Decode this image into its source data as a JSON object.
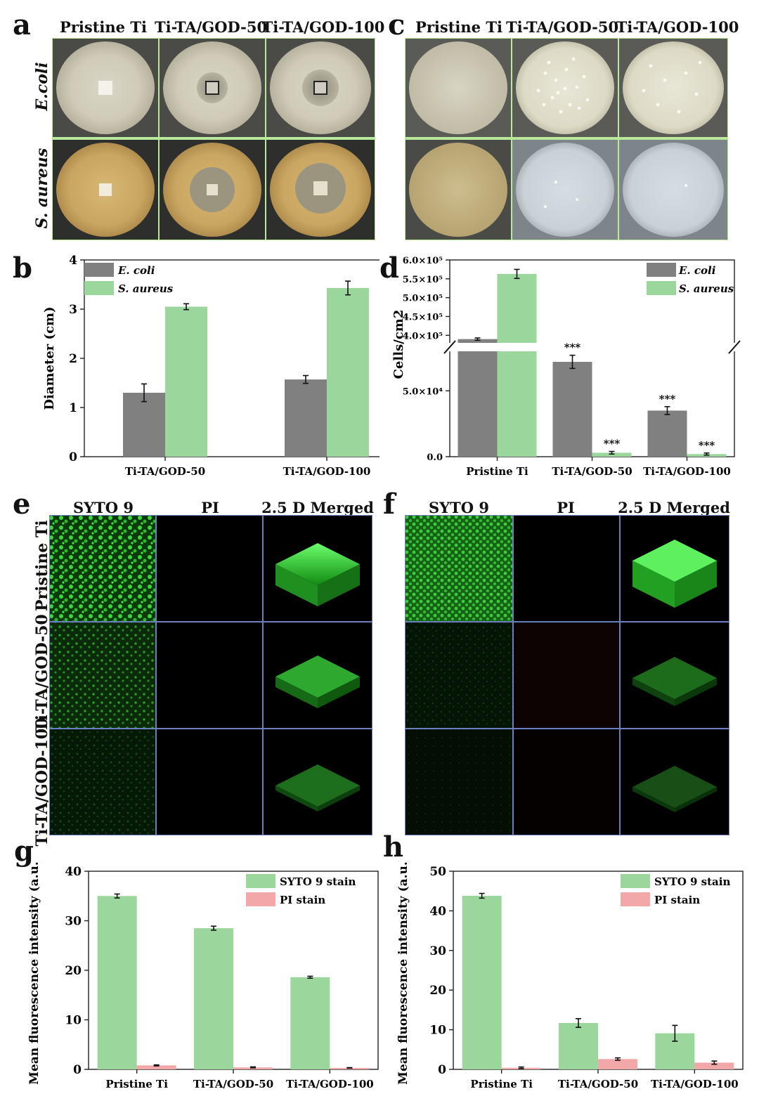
{
  "panel_labels": {
    "a": "a",
    "b": "b",
    "c": "c",
    "d": "d",
    "e": "e",
    "f": "f",
    "g": "g",
    "h": "h"
  },
  "plates": {
    "columns": [
      "Pristine Ti",
      "Ti-TA/GOD-50",
      "Ti-TA/GOD-100"
    ],
    "rows_a": [
      "E.coli",
      "S. aureus"
    ]
  },
  "confocal": {
    "columns": [
      "SYTO 9",
      "PI",
      "2.5 D Merged"
    ],
    "rows": [
      "Pristine Ti",
      "Ti-TA/GOD-50",
      "Ti-TA/GOD-100"
    ]
  },
  "colors": {
    "gray": "#808080",
    "green": "#9bd79d",
    "red": "#f2a8a8",
    "plate_border": "#b9e89a",
    "cf_border": "#6b7fbf"
  },
  "chart_data": [
    {
      "id": "b",
      "type": "bar",
      "categories": [
        "Ti-TA/GOD-50",
        "Ti-TA/GOD-100"
      ],
      "series": [
        {
          "name": "E. coli",
          "values": [
            1.3,
            1.57
          ],
          "errors": [
            0.18,
            0.08
          ]
        },
        {
          "name": "S. aureus",
          "values": [
            3.05,
            3.43
          ],
          "errors": [
            0.06,
            0.14
          ]
        }
      ],
      "ylabel": "Diameter (cm)",
      "ylim": [
        0,
        4
      ],
      "yticks": [
        "0",
        "1",
        "2",
        "3",
        "4"
      ],
      "legend": "top-left"
    },
    {
      "id": "d",
      "type": "bar",
      "categories": [
        "Pristine Ti",
        "Ti-TA/GOD-50",
        "Ti-TA/GOD-100"
      ],
      "series": [
        {
          "name": "E. coli",
          "values": [
            390000,
            72000,
            35000
          ],
          "errors": [
            3000,
            5000,
            3000
          ],
          "marks": [
            "",
            "***",
            "***"
          ]
        },
        {
          "name": "S. aureus",
          "values": [
            563000,
            3000,
            2000
          ],
          "errors": [
            12000,
            1000,
            800
          ],
          "marks": [
            "",
            "***",
            "***"
          ]
        }
      ],
      "ylabel": "Cells/cm2",
      "ylim": [
        0,
        600000
      ],
      "axis_break": [
        80000,
        380000
      ],
      "yticks_lower": [
        "0.0",
        "5.0×10⁴"
      ],
      "yticks_upper": [
        "4.0×10⁵",
        "4.5×10⁵",
        "5.0×10⁵",
        "5.5×10⁵",
        "6.0×10⁵"
      ],
      "legend": "top-right"
    },
    {
      "id": "g",
      "type": "bar",
      "categories": [
        "Pristine Ti",
        "Ti-TA/GOD-50",
        "Ti-TA/GOD-100"
      ],
      "series": [
        {
          "name": "SYTO 9 stain",
          "values": [
            35,
            28.5,
            18.6
          ],
          "errors": [
            0.4,
            0.4,
            0.2
          ]
        },
        {
          "name": "PI stain",
          "values": [
            0.8,
            0.4,
            0.3
          ],
          "errors": [
            0.1,
            0.1,
            0.05
          ]
        }
      ],
      "ylabel": "Mean fluorescence intensity (a.u.)",
      "ylim": [
        0,
        40
      ],
      "yticks": [
        "0",
        "10",
        "20",
        "30",
        "40"
      ],
      "legend": "top-right"
    },
    {
      "id": "h",
      "type": "bar",
      "categories": [
        "Pristine Ti",
        "Ti-TA/GOD-50",
        "Ti-TA/GOD-100"
      ],
      "series": [
        {
          "name": "SYTO 9 stain",
          "values": [
            43.8,
            11.7,
            9.1
          ],
          "errors": [
            0.6,
            1.1,
            2.0
          ]
        },
        {
          "name": "PI stain",
          "values": [
            0.4,
            2.6,
            1.7
          ],
          "errors": [
            0.2,
            0.3,
            0.4
          ]
        }
      ],
      "ylabel": "Mean fluorescence intensity (a.u.)",
      "ylim": [
        0,
        50
      ],
      "yticks": [
        "0",
        "10",
        "20",
        "30",
        "40",
        "50"
      ],
      "legend": "top-right"
    }
  ]
}
